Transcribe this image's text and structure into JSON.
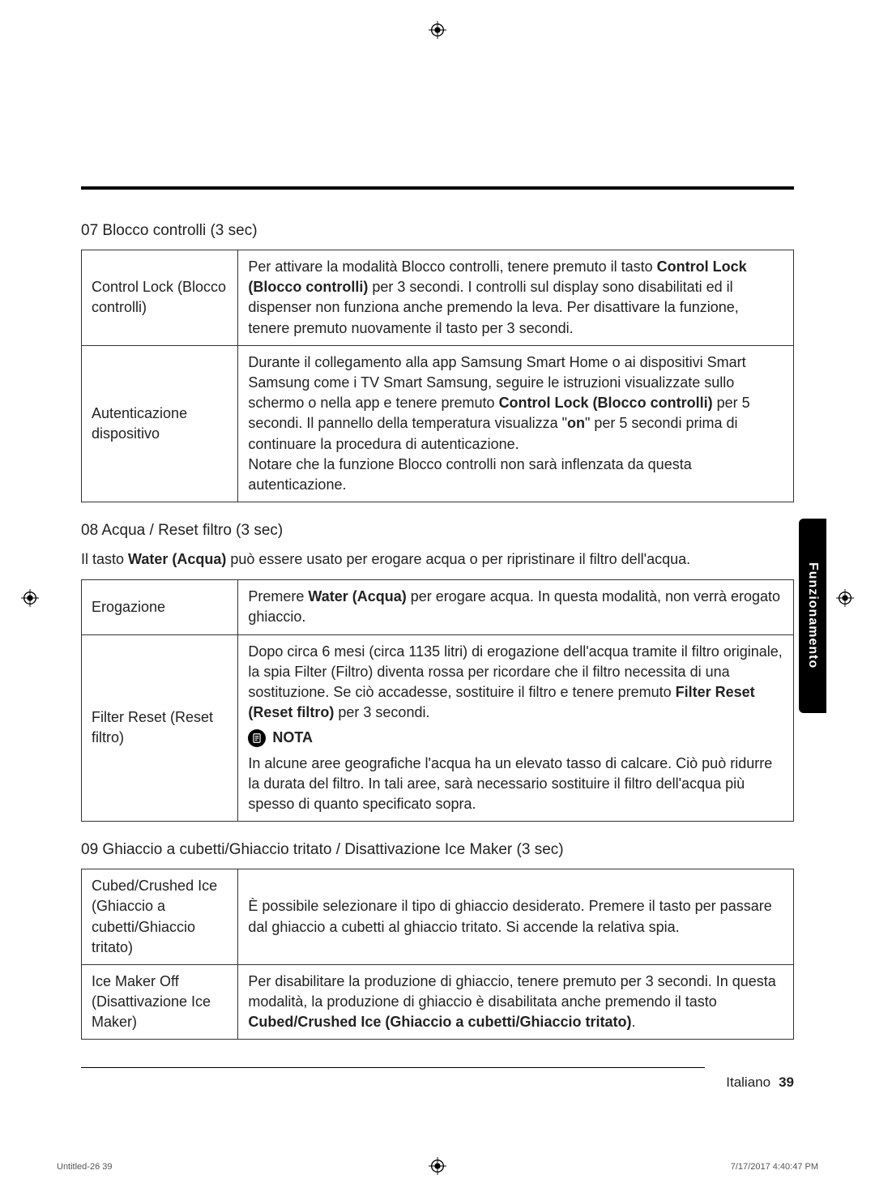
{
  "sections": {
    "s07": {
      "heading": "07 Blocco controlli (3 sec)",
      "rows": [
        {
          "label": "Control Lock (Blocco controlli)",
          "body_html": "Per attivare la modalità Blocco controlli, tenere premuto il tasto <b>Control Lock (Blocco controlli)</b> per 3 secondi. I controlli sul display sono disabilitati ed il dispenser non funziona anche premendo la leva. Per disattivare la funzione, tenere premuto nuovamente il tasto per 3 secondi."
        },
        {
          "label": "Autenticazione dispositivo",
          "body_html": "Durante il collegamento alla app Samsung Smart Home o ai dispositivi Smart Samsung come i TV Smart Samsung, seguire le istruzioni visualizzate sullo schermo o nella app e tenere premuto <b>Control Lock (Blocco controlli)</b> per 5 secondi. Il pannello della temperatura visualizza \"<b>on</b>\" per 5 secondi prima di continuare la procedura di autenticazione.<br>Notare che la funzione Blocco controlli non sarà inflenzata da questa autenticazione."
        }
      ]
    },
    "s08": {
      "heading": "08 Acqua / Reset filtro (3 sec)",
      "intro_html": "Il tasto <b>Water (Acqua)</b> può essere usato per erogare acqua o per ripristinare il filtro dell'acqua.",
      "rows": [
        {
          "label": "Erogazione",
          "body_html": "Premere <b>Water (Acqua)</b> per erogare acqua. In questa modalità, non verrà erogato ghiaccio."
        },
        {
          "label": "Filter Reset (Reset filtro)",
          "body_top_html": "Dopo circa 6 mesi (circa 1135 litri) di erogazione dell'acqua tramite il filtro originale, la spia Filter (Filtro) diventa rossa per ricordare che il filtro necessita di una sostituzione. Se ciò accadesse, sostituire il filtro e tenere premuto <b>Filter Reset (Reset filtro)</b> per 3 secondi.",
          "nota_label": "NOTA",
          "body_bottom_html": "In alcune aree geografiche l'acqua ha un elevato tasso di calcare. Ciò può ridurre la durata del filtro. In tali aree, sarà necessario sostituire il filtro dell'acqua più spesso di quanto specificato sopra."
        }
      ]
    },
    "s09": {
      "heading": "09 Ghiaccio a cubetti/Ghiaccio tritato / Disattivazione Ice Maker (3 sec)",
      "rows": [
        {
          "label": "Cubed/Crushed Ice (Ghiaccio a cubetti/Ghiaccio tritato)",
          "body_html": "È possibile selezionare il tipo di ghiaccio desiderato. Premere il tasto per passare dal ghiaccio a cubetti al ghiaccio tritato. Si accende la relativa spia."
        },
        {
          "label": "Ice Maker Off (Disattivazione Ice Maker)",
          "body_html": "Per disabilitare la produzione di ghiaccio, tenere premuto per 3 secondi. In questa modalità, la produzione di ghiaccio è disabilitata anche premendo il tasto <b>Cubed/Crushed Ice (Ghiaccio a cubetti/Ghiaccio tritato)</b>."
        }
      ]
    }
  },
  "side_tab": "Funzionamento",
  "footer": {
    "lang": "Italiano",
    "page": "39"
  },
  "print_footer": {
    "left": "Untitled-26   39",
    "right": "7/17/2017   4:40:47 PM"
  }
}
